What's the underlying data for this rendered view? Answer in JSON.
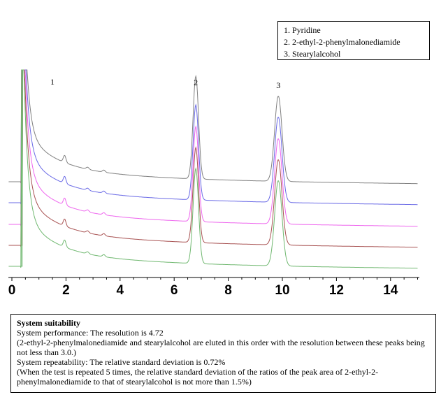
{
  "chart_data": {
    "type": "line",
    "title": "",
    "xlabel": "",
    "ylabel": "",
    "xlim": [
      0,
      15
    ],
    "x_ticks": [
      0,
      2,
      4,
      6,
      8,
      10,
      12,
      14
    ],
    "x_tick_labels": [
      "0",
      "2",
      "4",
      "6",
      "8",
      "10",
      "12",
      "14"
    ],
    "grid": false,
    "legend": {
      "placement": "top-right",
      "entries": [
        "1. Pyridine",
        "2. 2-ethyl-2-phenylmalonediamide",
        "3. Stearylalcohol"
      ]
    },
    "peak_labels": [
      {
        "label": "1",
        "x": 1.5
      },
      {
        "label": "2",
        "x": 6.8
      },
      {
        "label": "3",
        "x": 9.85
      }
    ],
    "series": [
      {
        "color": "#808080",
        "peaks": [
          {
            "x": 6.8,
            "height": 147
          },
          {
            "x": 9.85,
            "height": 122
          }
        ]
      },
      {
        "color": "#6a6ae6",
        "peaks": [
          {
            "x": 6.8,
            "height": 136
          },
          {
            "x": 9.85,
            "height": 122
          }
        ]
      },
      {
        "color": "#ee66ee",
        "peaks": [
          {
            "x": 6.8,
            "height": 136
          },
          {
            "x": 9.85,
            "height": 122
          }
        ]
      },
      {
        "color": "#a85252",
        "peaks": [
          {
            "x": 6.8,
            "height": 136
          },
          {
            "x": 9.85,
            "height": 122
          }
        ]
      },
      {
        "color": "#70b870",
        "peaks": [
          {
            "x": 6.8,
            "height": 136
          },
          {
            "x": 9.85,
            "height": 122
          }
        ]
      }
    ]
  },
  "info": {
    "title": "System suitability",
    "lines": [
      "System performance: The resolution is 4.72",
      "(2-ethyl-2-phenylmalonediamide and stearylalcohol are eluted in this order with the resolution between these peaks being not less than 3.0.)",
      "System repeatability: The relative standard deviation is 0.72%",
      "(When the test is repeated 5 times, the relative standard deviation of the ratios of the peak area of 2-ethyl-2-phenylmalonediamide to that of stearylalcohol is not more than 1.5%)"
    ]
  }
}
